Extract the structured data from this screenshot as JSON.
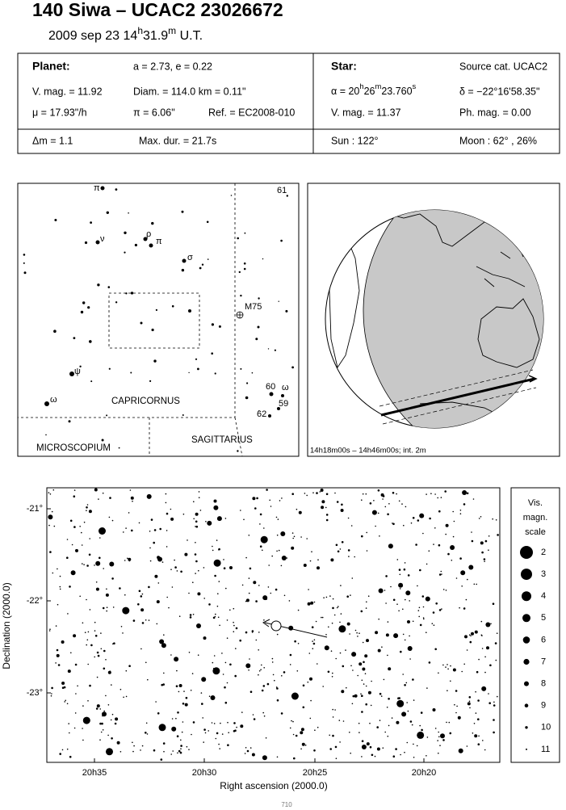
{
  "header": {
    "title": "140 Siwa  –  UCAC2 23026672",
    "date": [
      "2009 sep 23  14",
      "h",
      "31.9",
      "m",
      " U.T."
    ]
  },
  "planet": {
    "label": "Planet:",
    "orbit": "a = 2.73, e = 0.22",
    "vmag": "V. mag. = 11.92",
    "diam": "Diam. = 114.0 km = 0.11\"",
    "motion": "μ = 17.93\"/h",
    "parallax": "π =  6.06\"",
    "ref": "Ref. = EC2008-010",
    "dmag": "Δm = 1.1",
    "maxdur": "Max. dur. = 21.7s"
  },
  "star": {
    "label": "Star:",
    "source": "Source cat.  UCAC2",
    "ra": [
      "α = 20",
      "h",
      "26",
      "m",
      "23.760",
      "s"
    ],
    "dec": "δ = −22°16'58.35\"",
    "vmag": "V. mag. = 11.37",
    "phmag": "Ph. mag. =  0.00",
    "sun": "Sun : 122°",
    "moon": "Moon :  62° , 26%"
  },
  "finder": {
    "labels": [
      "π",
      "ν",
      "ρ",
      "π",
      "σ",
      "ψ",
      "ω",
      "M75",
      "61",
      "60",
      "ω",
      "59",
      "62",
      "CAPRICORNUS",
      "MICROSCOPIUM",
      "SAGITTARIUS"
    ]
  },
  "globe": {
    "caption": "14h18m00s – 14h46m00s; int.  2m"
  },
  "chart": {
    "yticks": [
      "-21°",
      "-22°",
      "-23°"
    ],
    "xticks": [
      "20h35",
      "20h30",
      "20h25",
      "20h20"
    ],
    "xlabel": "Right ascension (2000.0)",
    "ylabel": "Declination (2000.0)"
  },
  "scale": {
    "title": [
      "Vis.",
      "magn.",
      "scale"
    ],
    "magnitudes": [
      2,
      3,
      4,
      5,
      6,
      7,
      8,
      9,
      10,
      11
    ]
  },
  "footer": {
    "page": "710"
  }
}
